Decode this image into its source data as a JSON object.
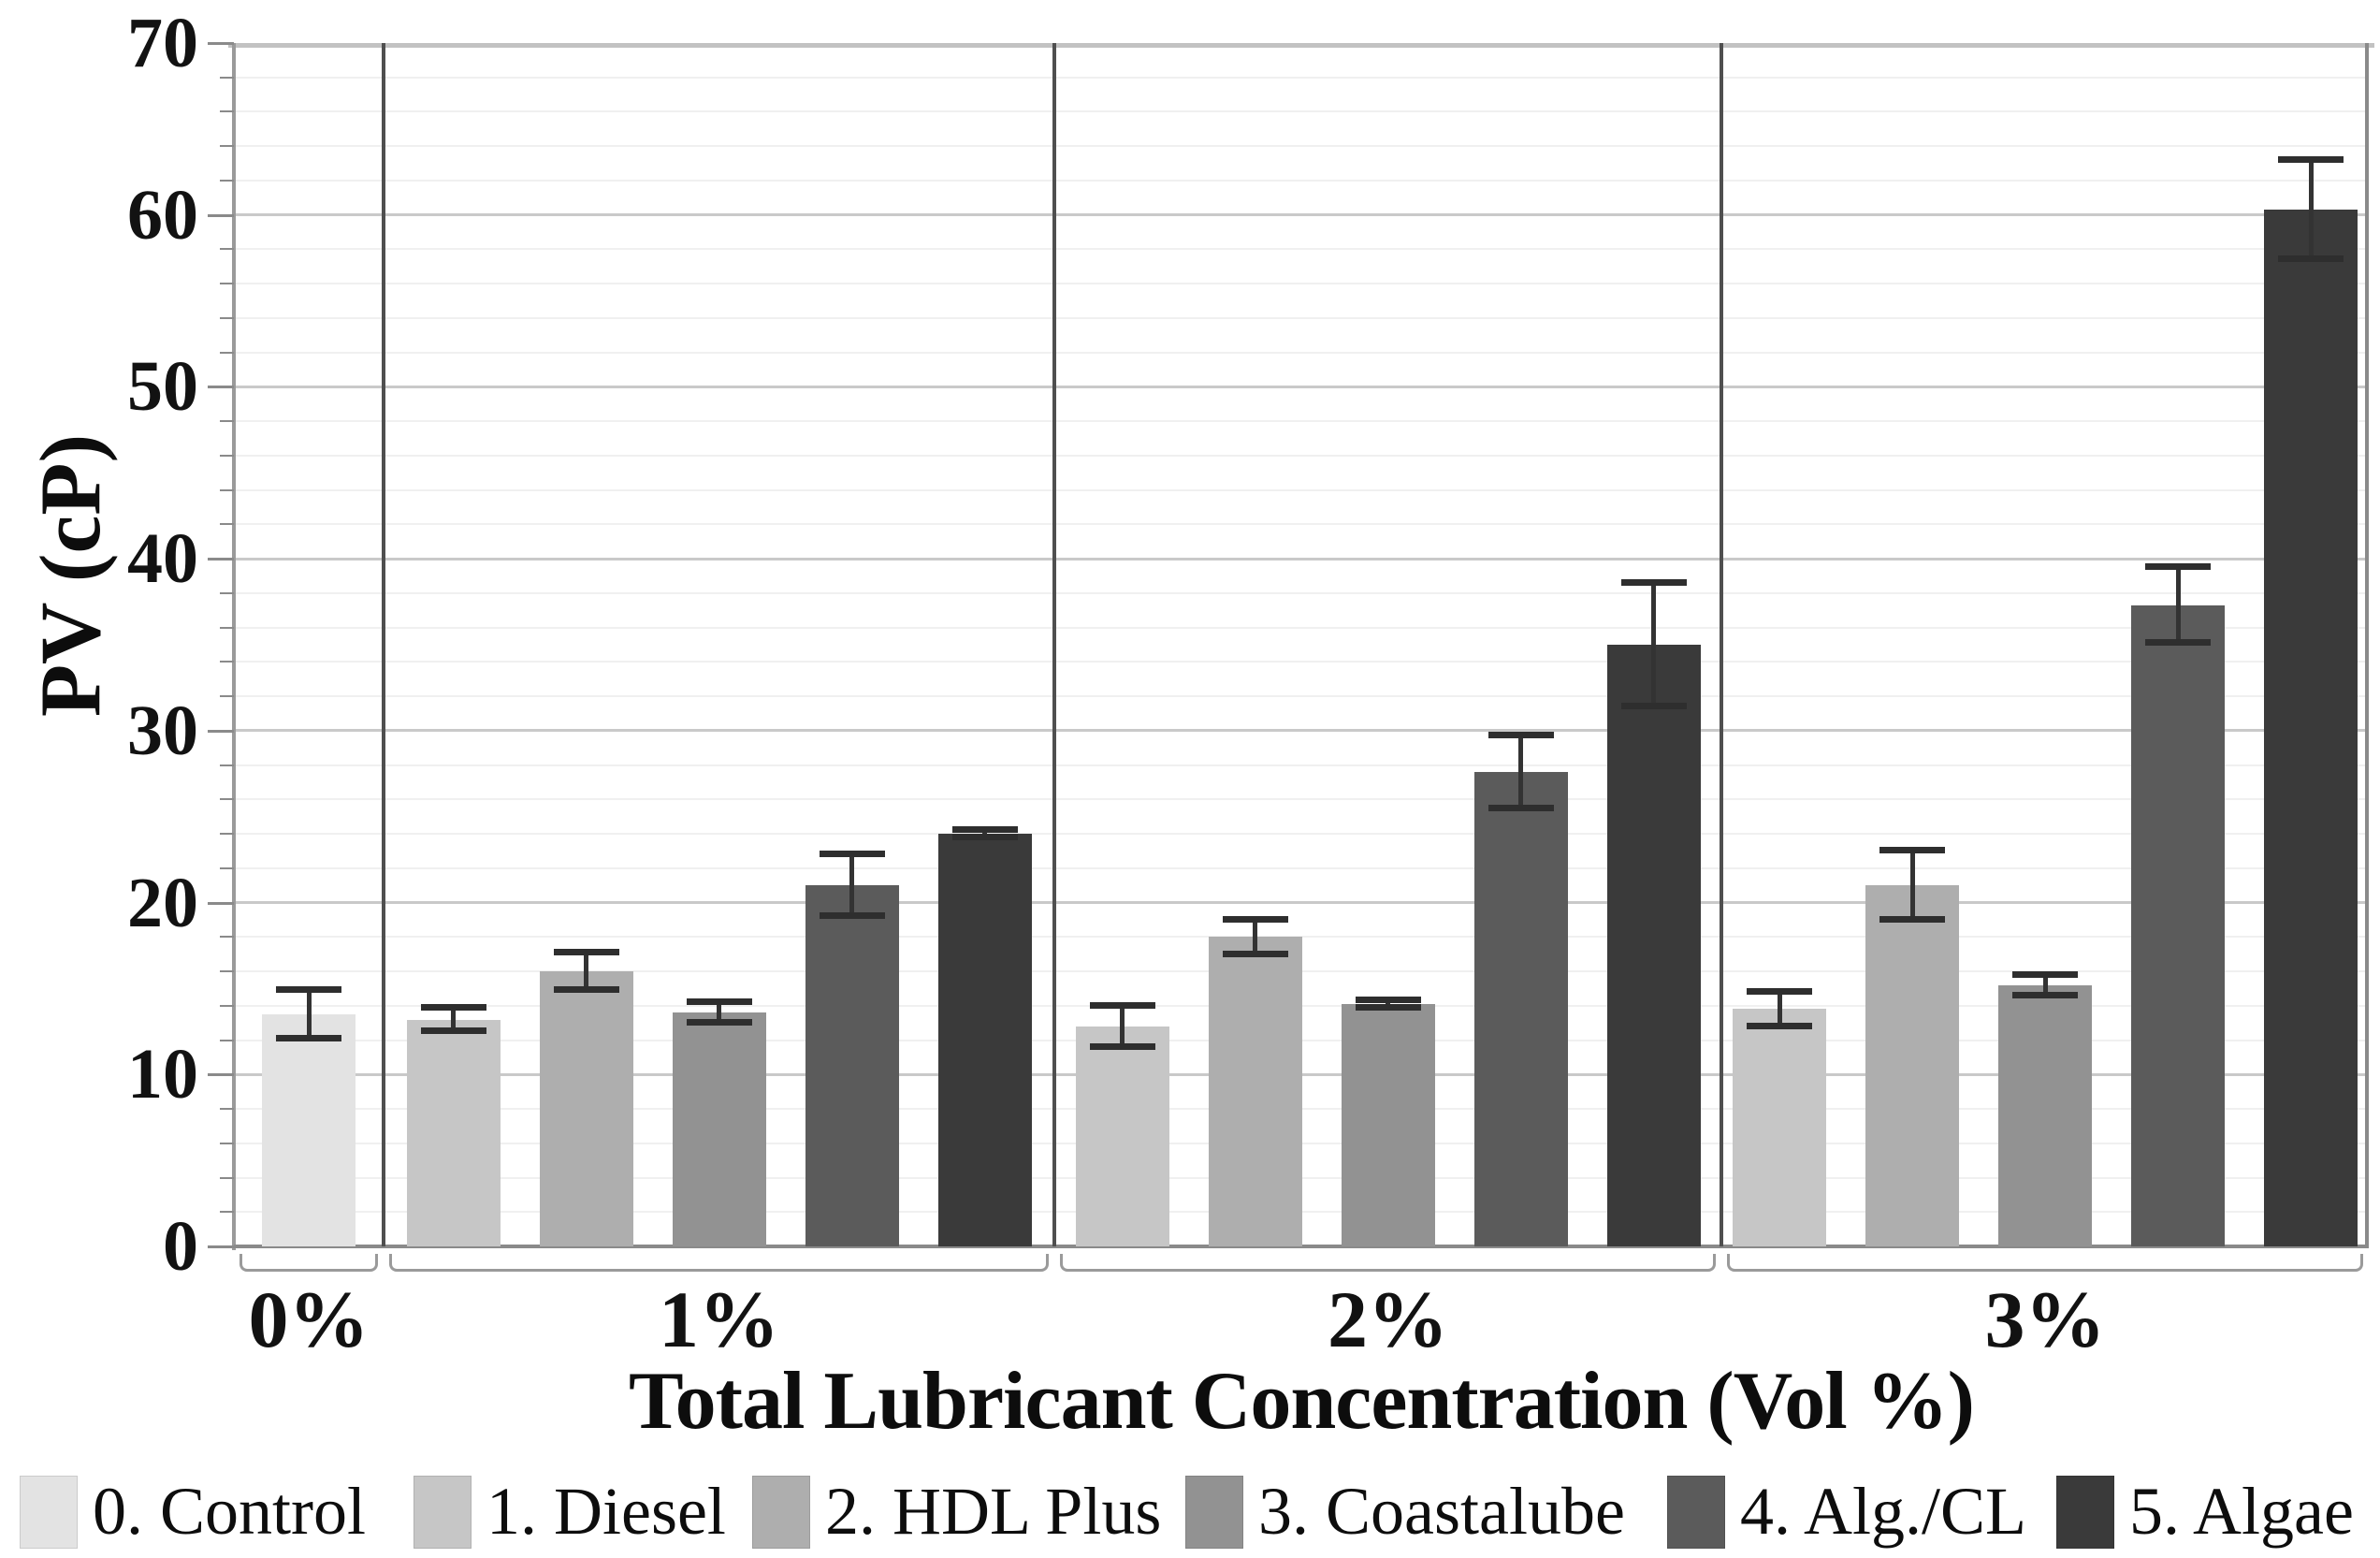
{
  "chart_data": {
    "type": "bar",
    "title": "",
    "xlabel": "Total Lubricant Concentration (Vol %)",
    "ylabel": "PV (cP)",
    "ylim": [
      0,
      70
    ],
    "y_major_step": 10,
    "y_minor_step": 2,
    "y_ticks": [
      "0",
      "10",
      "20",
      "30",
      "40",
      "50",
      "60",
      "70"
    ],
    "grid": "horizontal, minor every 2 and major every 10, panels split by vertical lines",
    "legend_position": "bottom",
    "error_bars": true,
    "categories": [
      "0%",
      "1%",
      "2%",
      "3%"
    ],
    "series": [
      {
        "name": "0. Control",
        "color": "#e3e3e3",
        "values": [
          13.5,
          null,
          null,
          null
        ],
        "errors": [
          1.4,
          null,
          null,
          null
        ]
      },
      {
        "name": "1. Diesel",
        "color": "#c6c6c6",
        "values": [
          null,
          13.2,
          12.8,
          13.8
        ],
        "errors": [
          null,
          0.7,
          1.2,
          1.0
        ]
      },
      {
        "name": "2. HDL Plus",
        "color": "#aeaeae",
        "values": [
          null,
          16.0,
          18.0,
          21.0
        ],
        "errors": [
          null,
          1.1,
          1.0,
          2.0
        ]
      },
      {
        "name": "3. Coastalube",
        "color": "#929292",
        "values": [
          null,
          13.6,
          14.1,
          15.2
        ],
        "errors": [
          null,
          0.6,
          0.2,
          0.6
        ]
      },
      {
        "name": "4. Alg./CL",
        "color": "#5b5b5b",
        "values": [
          null,
          21.0,
          27.6,
          37.3
        ],
        "errors": [
          null,
          1.8,
          2.1,
          2.2
        ]
      },
      {
        "name": "5. Algae",
        "color": "#3a3a3a",
        "values": [
          null,
          24.0,
          35.0,
          60.3
        ],
        "errors": [
          null,
          0.2,
          3.6,
          2.9
        ]
      }
    ]
  }
}
